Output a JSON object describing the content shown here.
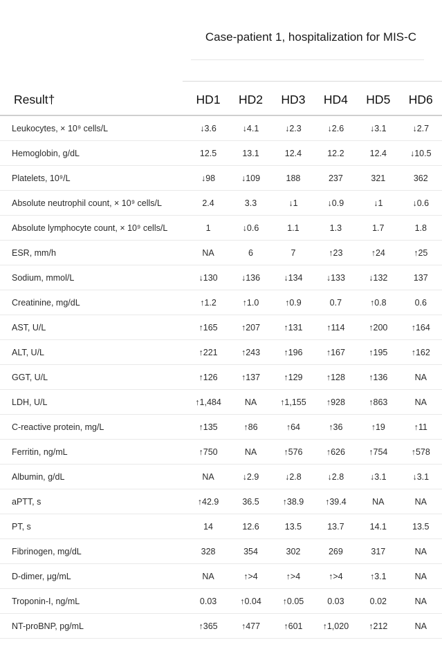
{
  "caption": "Case-patient 1, hospitalization for MIS-C",
  "columns": {
    "result": "Result†",
    "days": [
      "HD1",
      "HD2",
      "HD3",
      "HD4",
      "HD5",
      "HD6"
    ]
  },
  "rows": [
    {
      "label": "Leukocytes, × 10⁹ cells/L",
      "values": [
        "↓3.6",
        "↓4.1",
        "↓2.3",
        "↓2.6",
        "↓3.1",
        "↓2.7"
      ]
    },
    {
      "label": "Hemoglobin, g/dL",
      "values": [
        "12.5",
        "13.1",
        "12.4",
        "12.2",
        "12.4",
        "↓10.5"
      ]
    },
    {
      "label": "Platelets, 10⁹/L",
      "values": [
        "↓98",
        "↓109",
        "188",
        "237",
        "321",
        "362"
      ]
    },
    {
      "label": "Absolute neutrophil count, × 10⁹ cells/L",
      "values": [
        "2.4",
        "3.3",
        "↓1",
        "↓0.9",
        "↓1",
        "↓0.6"
      ]
    },
    {
      "label": "Absolute lymphocyte count, × 10⁹ cells/L",
      "values": [
        "1",
        "↓0.6",
        "1.1",
        "1.3",
        "1.7",
        "1.8"
      ]
    },
    {
      "label": "ESR, mm/h",
      "values": [
        "NA",
        "6",
        "7",
        "↑23",
        "↑24",
        "↑25"
      ]
    },
    {
      "label": "Sodium, mmol/L",
      "values": [
        "↓130",
        "↓136",
        "↓134",
        "↓133",
        "↓132",
        "137"
      ]
    },
    {
      "label": "Creatinine, mg/dL",
      "values": [
        "↑1.2",
        "↑1.0",
        "↑0.9",
        "0.7",
        "↑0.8",
        "0.6"
      ]
    },
    {
      "label": "AST, U/L",
      "values": [
        "↑165",
        "↑207",
        "↑131",
        "↑114",
        "↑200",
        "↑164"
      ]
    },
    {
      "label": "ALT, U/L",
      "values": [
        "↑221",
        "↑243",
        "↑196",
        "↑167",
        "↑195",
        "↑162"
      ]
    },
    {
      "label": "GGT, U/L",
      "values": [
        "↑126",
        "↑137",
        "↑129",
        "↑128",
        "↑136",
        "NA"
      ]
    },
    {
      "label": "LDH, U/L",
      "values": [
        "↑1,484",
        "NA",
        "↑1,155",
        "↑928",
        "↑863",
        "NA"
      ]
    },
    {
      "label": "C-reactive protein, mg/L",
      "values": [
        "↑135",
        "↑86",
        "↑64",
        "↑36",
        "↑19",
        "↑11"
      ]
    },
    {
      "label": "Ferritin, ng/mL",
      "values": [
        "↑750",
        "NA",
        "↑576",
        "↑626",
        "↑754",
        "↑578"
      ]
    },
    {
      "label": "Albumin, g/dL",
      "values": [
        "NA",
        "↓2.9",
        "↓2.8",
        "↓2.8",
        "↓3.1",
        "↓3.1"
      ]
    },
    {
      "label": "aPTT, s",
      "values": [
        "↑42.9",
        "36.5",
        "↑38.9",
        "↑39.4",
        "NA",
        "NA"
      ]
    },
    {
      "label": "PT, s",
      "values": [
        "14",
        "12.6",
        "13.5",
        "13.7",
        "14.1",
        "13.5"
      ]
    },
    {
      "label": "Fibrinogen, mg/dL",
      "values": [
        "328",
        "354",
        "302",
        "269",
        "317",
        "NA"
      ]
    },
    {
      "label": "D-dimer, μg/mL",
      "values": [
        "NA",
        "↑>4",
        "↑>4",
        "↑>4",
        "↑3.1",
        "NA"
      ]
    },
    {
      "label": "Troponin-I, ng/mL",
      "values": [
        "0.03",
        "↑0.04",
        "↑0.05",
        "0.03",
        "0.02",
        "NA"
      ]
    },
    {
      "label": "NT-proBNP, pg/mL",
      "values": [
        "↑365",
        "↑477",
        "↑601",
        "↑1,020",
        "↑212",
        "NA"
      ]
    }
  ]
}
